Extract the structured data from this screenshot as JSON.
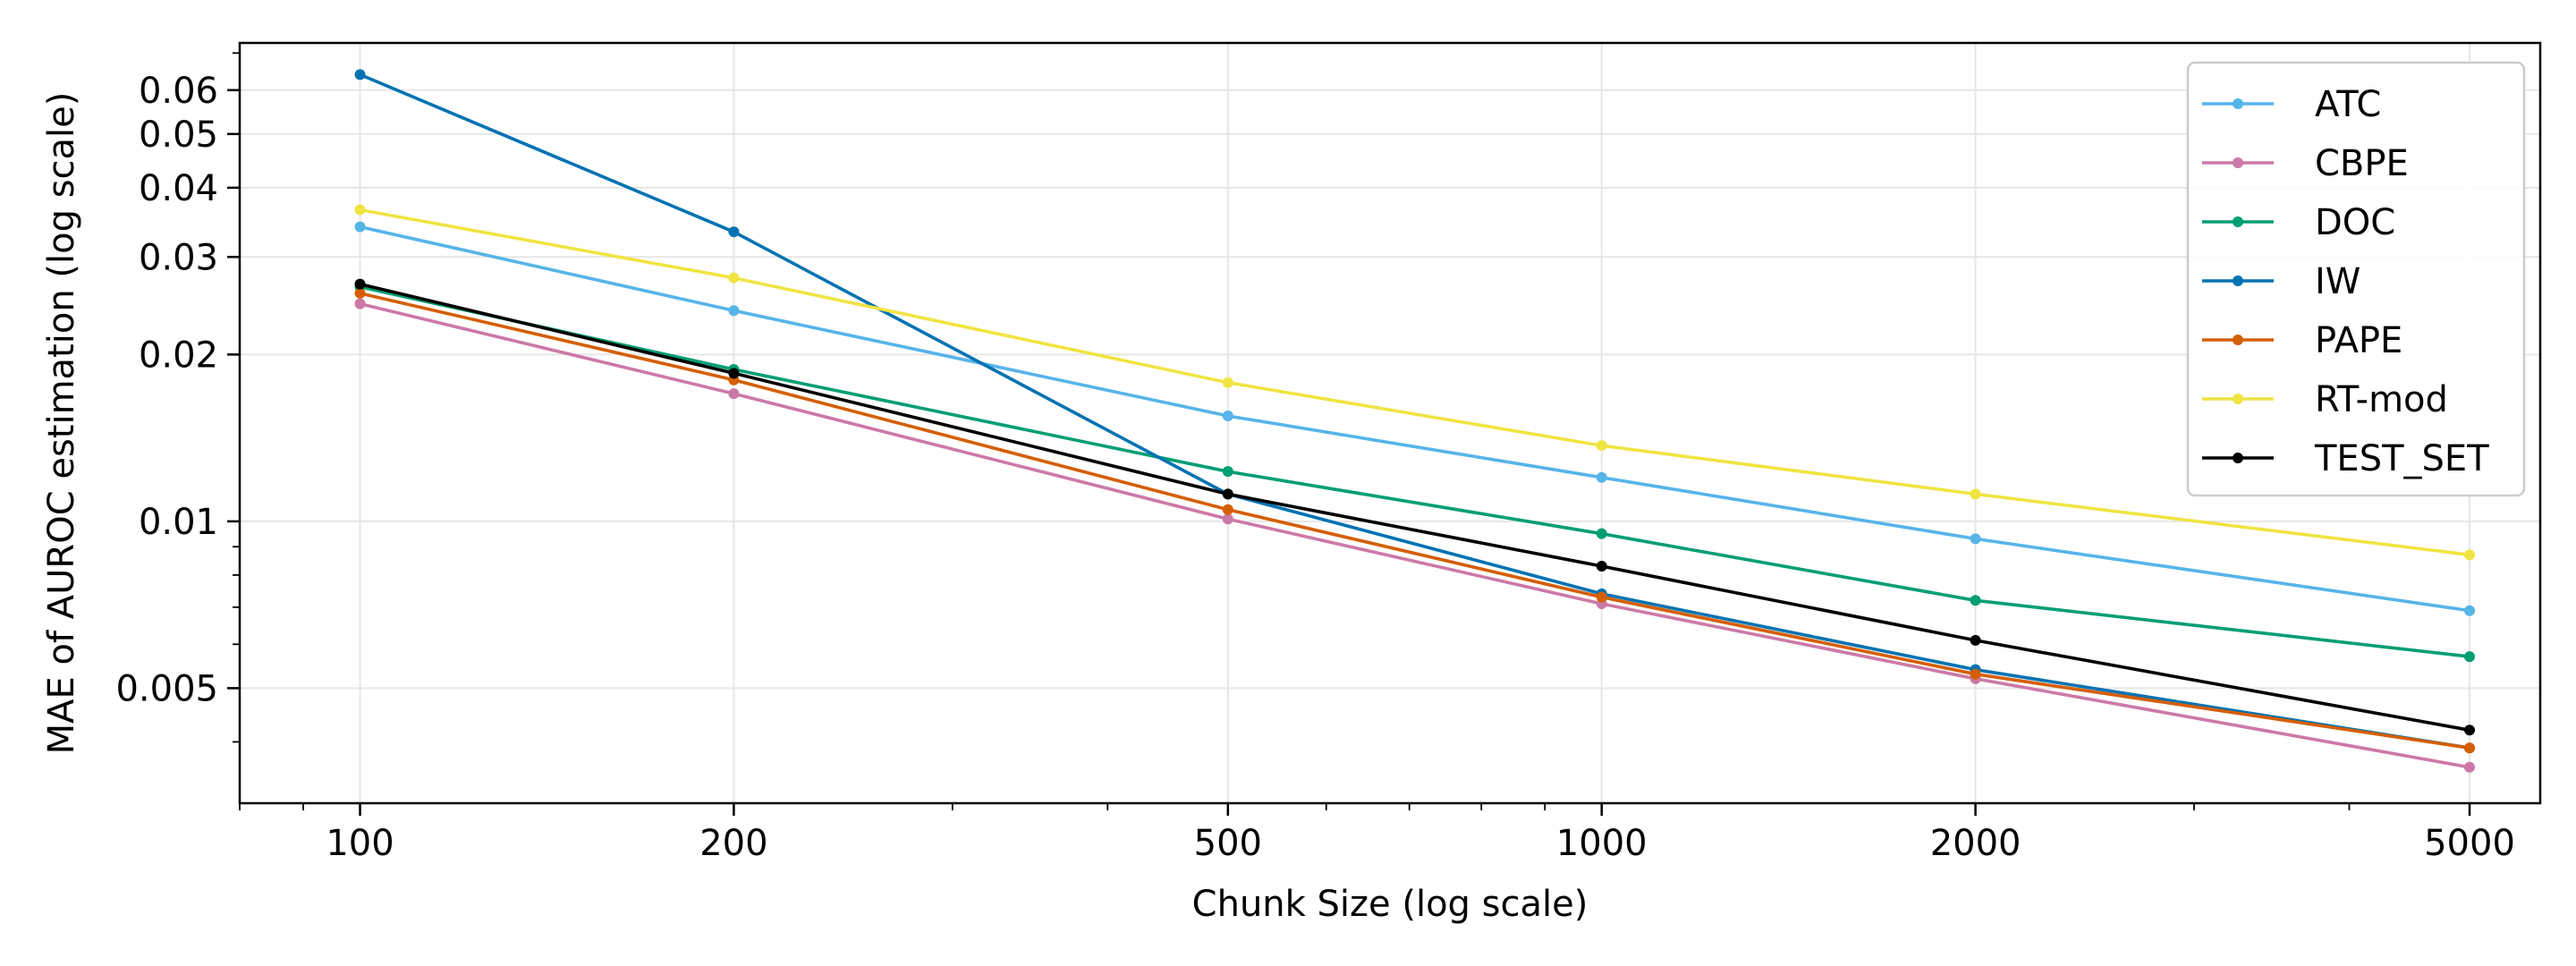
{
  "chart_data": {
    "type": "line",
    "xlabel": "Chunk Size (log scale)",
    "ylabel": "MAE of AUROC estimation (log scale)",
    "xscale": "log",
    "yscale": "log",
    "xlim": [
      80,
      5700
    ],
    "ylim": [
      0.0031,
      0.073
    ],
    "grid": true,
    "legend_position": "upper right",
    "x": [
      100,
      200,
      500,
      1000,
      2000,
      5000
    ],
    "x_tick_labels": [
      "100",
      "200",
      "500",
      "1000",
      "2000",
      "5000"
    ],
    "y_ticks": [
      0.005,
      0.01,
      0.02,
      0.03,
      0.04,
      0.05,
      0.06
    ],
    "y_tick_labels": [
      "0.005",
      "0.01",
      "0.02",
      "0.03",
      "0.04",
      "0.05",
      "0.06"
    ],
    "series": [
      {
        "name": "ATC",
        "color": "#56b4e9",
        "values": [
          0.034,
          0.024,
          0.0155,
          0.012,
          0.0093,
          0.0069
        ]
      },
      {
        "name": "CBPE",
        "color": "#cc79a7",
        "values": [
          0.0247,
          0.017,
          0.0101,
          0.0071,
          0.0052,
          0.0036
        ]
      },
      {
        "name": "DOC",
        "color": "#009e73",
        "values": [
          0.0265,
          0.0188,
          0.0123,
          0.0095,
          0.0072,
          0.0057
        ]
      },
      {
        "name": "IW",
        "color": "#0072b2",
        "values": [
          0.064,
          0.0333,
          0.0112,
          0.0074,
          0.0054,
          0.0039
        ]
      },
      {
        "name": "PAPE",
        "color": "#d55e00",
        "values": [
          0.0258,
          0.018,
          0.0105,
          0.0073,
          0.0053,
          0.0039
        ]
      },
      {
        "name": "RT-mod",
        "color": "#f0e442",
        "values": [
          0.0365,
          0.0275,
          0.0178,
          0.0137,
          0.0112,
          0.0087
        ]
      },
      {
        "name": "TEST_SET",
        "color": "#000000",
        "values": [
          0.0268,
          0.0185,
          0.0112,
          0.0083,
          0.0061,
          0.0042
        ]
      }
    ]
  }
}
